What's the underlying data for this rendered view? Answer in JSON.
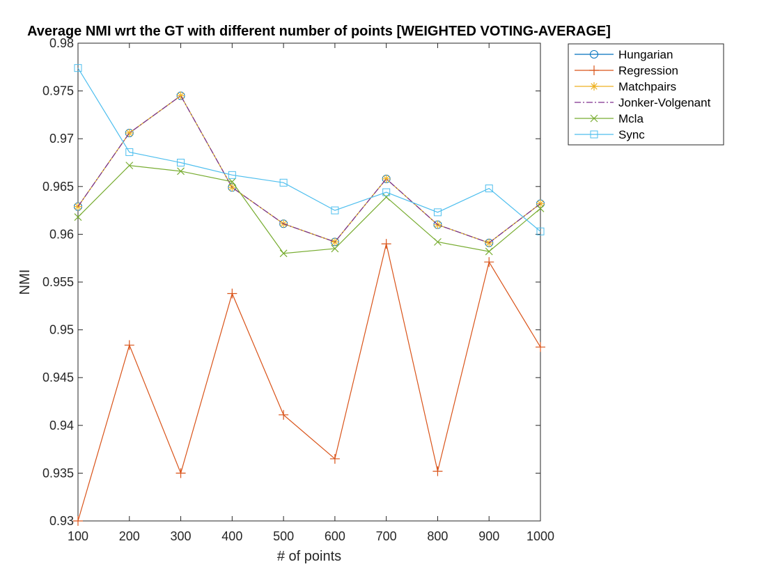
{
  "chart_data": {
    "type": "line",
    "title": "Average NMI wrt the GT with different number of points [WEIGHTED VOTING-AVERAGE]",
    "xlabel": "# of points",
    "ylabel": "NMI",
    "x": [
      100,
      200,
      300,
      400,
      500,
      600,
      700,
      800,
      900,
      1000
    ],
    "xlim": [
      100,
      1000
    ],
    "ylim": [
      0.93,
      0.98
    ],
    "xticks": [
      "100",
      "200",
      "300",
      "400",
      "500",
      "600",
      "700",
      "800",
      "900",
      "1000"
    ],
    "yticks": [
      "0.93",
      "0.935",
      "0.94",
      "0.945",
      "0.95",
      "0.955",
      "0.96",
      "0.965",
      "0.97",
      "0.975",
      "0.98"
    ],
    "grid": false,
    "legend_position": "outside-top-right",
    "series": [
      {
        "name": "Hungarian",
        "color": "#0072BD",
        "marker": "circle",
        "line": "solid",
        "values": [
          0.9629,
          0.9706,
          0.9745,
          0.9649,
          0.9611,
          0.9592,
          0.9658,
          0.961,
          0.9591,
          0.9632
        ]
      },
      {
        "name": "Regression",
        "color": "#D95319",
        "marker": "plus",
        "line": "solid",
        "values": [
          0.93,
          0.9484,
          0.935,
          0.9538,
          0.9411,
          0.9365,
          0.959,
          0.9352,
          0.9571,
          0.9482
        ]
      },
      {
        "name": "Matchpairs",
        "color": "#EDB120",
        "marker": "asterisk",
        "line": "solid",
        "values": [
          0.9629,
          0.9706,
          0.9745,
          0.9649,
          0.9611,
          0.9592,
          0.9658,
          0.961,
          0.9591,
          0.9632
        ]
      },
      {
        "name": "Jonker-Volgenant",
        "color": "#7E2F8E",
        "marker": "none",
        "line": "dashdot",
        "values": [
          0.9629,
          0.9706,
          0.9745,
          0.9649,
          0.9611,
          0.9592,
          0.9658,
          0.961,
          0.9591,
          0.9632
        ]
      },
      {
        "name": "Mcla",
        "color": "#77AC30",
        "marker": "x",
        "line": "solid",
        "values": [
          0.9618,
          0.9672,
          0.9666,
          0.9655,
          0.958,
          0.9585,
          0.9639,
          0.9592,
          0.9582,
          0.9627
        ]
      },
      {
        "name": "Sync",
        "color": "#4DBEEE",
        "marker": "square",
        "line": "solid",
        "values": [
          0.9774,
          0.9686,
          0.9675,
          0.9662,
          0.9654,
          0.9625,
          0.9644,
          0.9623,
          0.9648,
          0.9603
        ]
      }
    ]
  }
}
